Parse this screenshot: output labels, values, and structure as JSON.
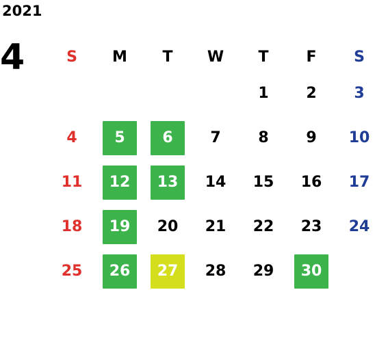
{
  "year": "2021",
  "month": "4",
  "colors": {
    "sunday": "#e0302c",
    "saturday": "#1f3c96",
    "highlight_green": "#3cb44b",
    "highlight_yellow": "#d4de1c"
  },
  "weekdays": [
    "S",
    "M",
    "T",
    "W",
    "T",
    "F",
    "S"
  ],
  "weeks": [
    [
      {
        "day": "",
        "hl": ""
      },
      {
        "day": "",
        "hl": ""
      },
      {
        "day": "",
        "hl": ""
      },
      {
        "day": "",
        "hl": ""
      },
      {
        "day": "1",
        "hl": ""
      },
      {
        "day": "2",
        "hl": ""
      },
      {
        "day": "3",
        "hl": ""
      }
    ],
    [
      {
        "day": "4",
        "hl": ""
      },
      {
        "day": "5",
        "hl": "green"
      },
      {
        "day": "6",
        "hl": "green"
      },
      {
        "day": "7",
        "hl": ""
      },
      {
        "day": "8",
        "hl": ""
      },
      {
        "day": "9",
        "hl": ""
      },
      {
        "day": "10",
        "hl": ""
      }
    ],
    [
      {
        "day": "11",
        "hl": ""
      },
      {
        "day": "12",
        "hl": "green"
      },
      {
        "day": "13",
        "hl": "green"
      },
      {
        "day": "14",
        "hl": ""
      },
      {
        "day": "15",
        "hl": ""
      },
      {
        "day": "16",
        "hl": ""
      },
      {
        "day": "17",
        "hl": ""
      }
    ],
    [
      {
        "day": "18",
        "hl": ""
      },
      {
        "day": "19",
        "hl": "green"
      },
      {
        "day": "20",
        "hl": ""
      },
      {
        "day": "21",
        "hl": ""
      },
      {
        "day": "22",
        "hl": ""
      },
      {
        "day": "23",
        "hl": ""
      },
      {
        "day": "24",
        "hl": ""
      }
    ],
    [
      {
        "day": "25",
        "hl": ""
      },
      {
        "day": "26",
        "hl": "green"
      },
      {
        "day": "27",
        "hl": "yellow"
      },
      {
        "day": "28",
        "hl": ""
      },
      {
        "day": "29",
        "hl": ""
      },
      {
        "day": "30",
        "hl": "green"
      },
      {
        "day": "",
        "hl": ""
      }
    ]
  ]
}
